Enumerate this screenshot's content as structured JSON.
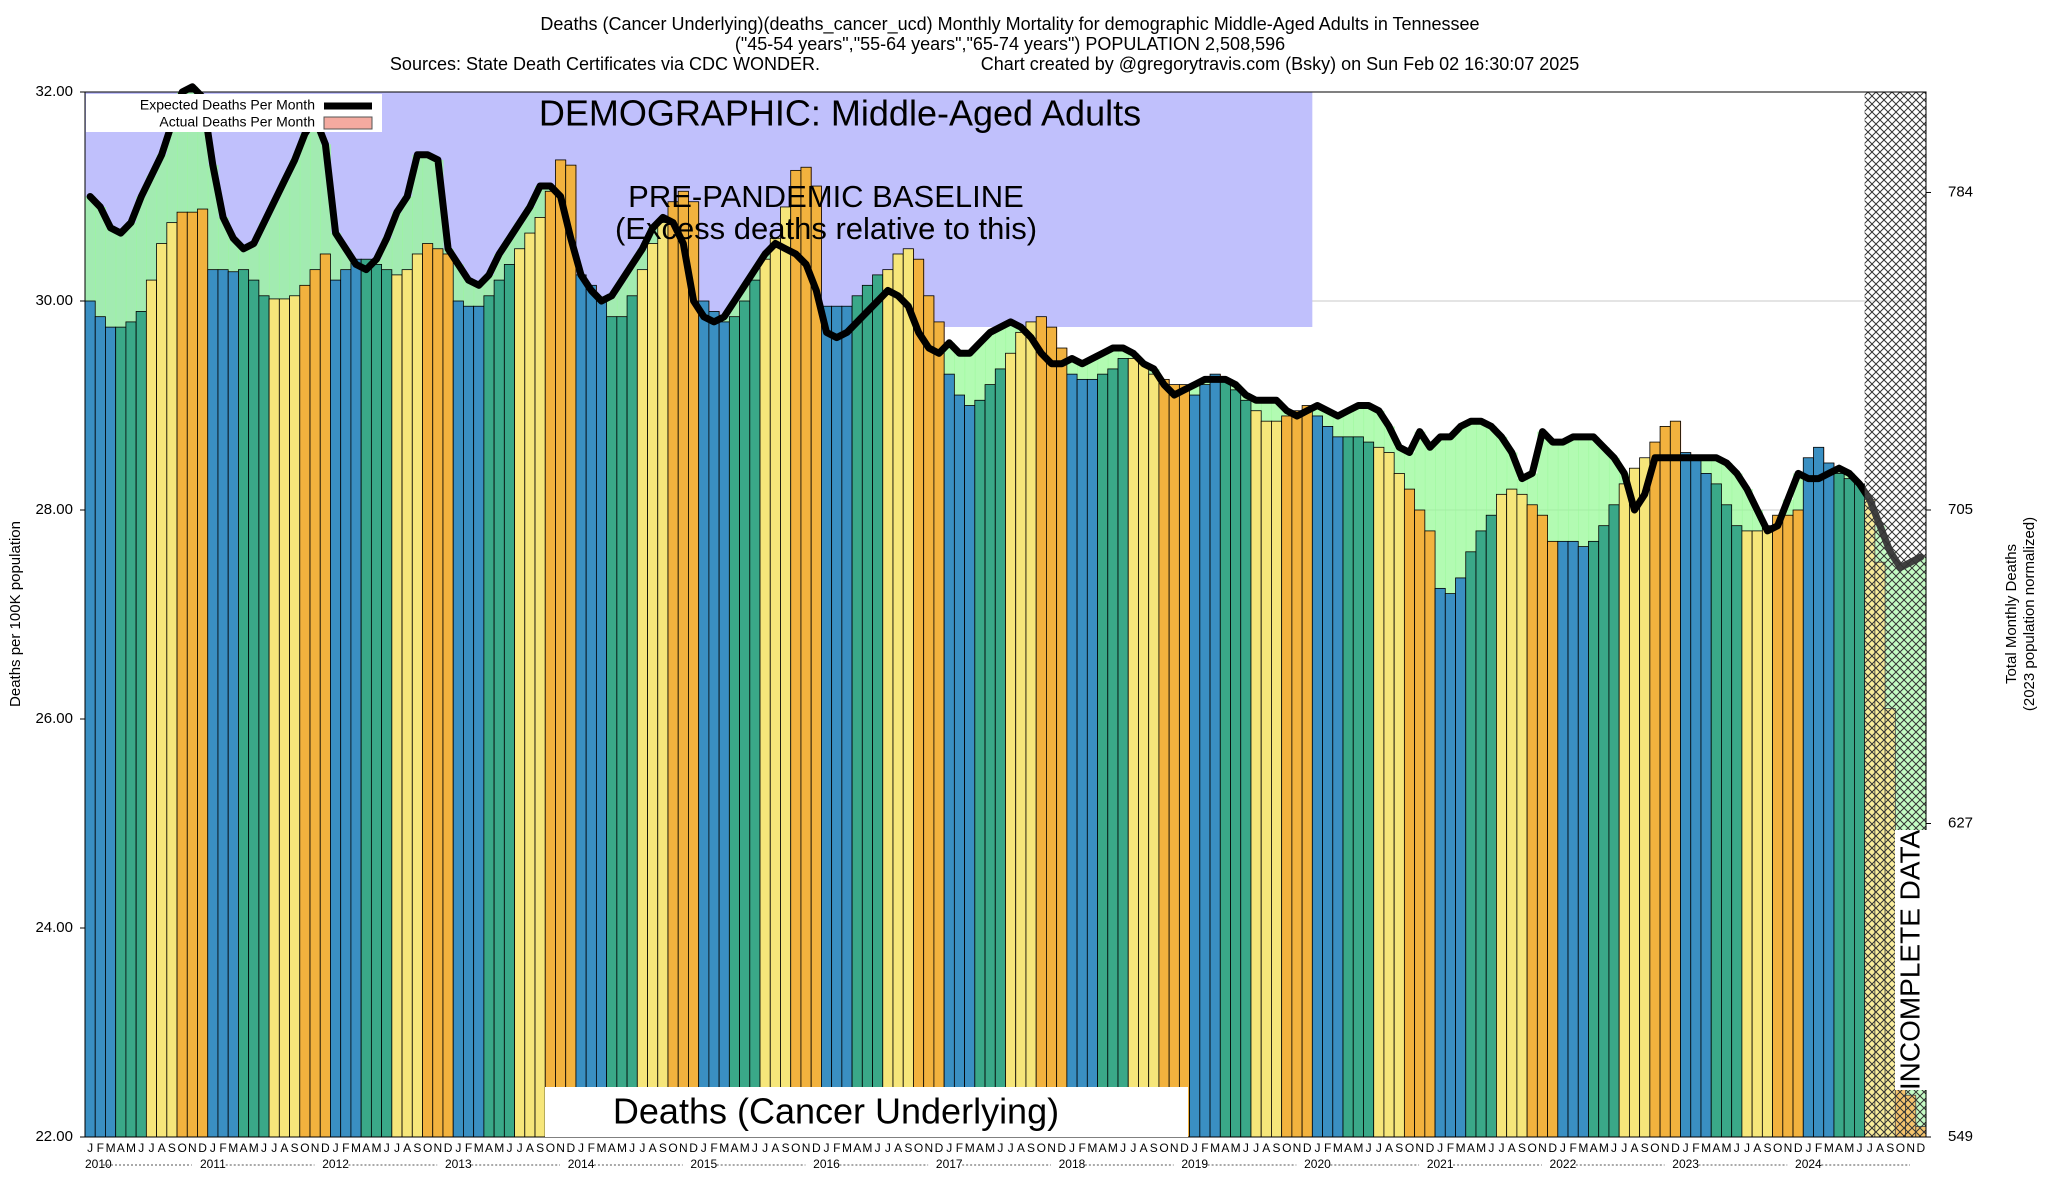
{
  "chart_data": {
    "type": "bar",
    "title": "Deaths (Cancer Underlying)(deaths_cancer_ucd) Monthly Mortality for demographic Middle-Aged Adults in Tennessee",
    "subtitle": "(\"45-54 years\",\"55-64 years\",\"65-74 years\") POPULATION 2,508,596",
    "source": "Sources: State Death Certificates via CDC WONDER.",
    "credit": "Chart created by @gregorytravis.com (Bsky) on Sun Feb 02 16:30:07 2025",
    "ylabel": "Deaths per 100K population",
    "y2label": "Total Monthly Deaths",
    "y2label_note": "(2023 population normalized)",
    "annotations": [
      "DEMOGRAPHIC: Middle-Aged Adults",
      "PRE-PANDEMIC BASELINE",
      "(Excess deaths relative to this)",
      "Deaths (Cancer Underlying)",
      "INCOMPLETE DATA"
    ],
    "categories": [
      "J",
      "F",
      "M",
      "A",
      "M",
      "J",
      "J",
      "A",
      "S",
      "O",
      "N",
      "D",
      "J",
      "F",
      "M",
      "A",
      "M",
      "J",
      "J",
      "A",
      "S",
      "O",
      "N",
      "D",
      "J",
      "F",
      "M",
      "A",
      "M",
      "J",
      "J",
      "A",
      "S",
      "O",
      "N",
      "D",
      "J",
      "F",
      "M",
      "A",
      "M",
      "J",
      "J",
      "A",
      "S",
      "O",
      "N",
      "D",
      "J",
      "F",
      "M",
      "A",
      "M",
      "J",
      "J",
      "A",
      "S",
      "O",
      "N",
      "D",
      "J",
      "F",
      "M",
      "A",
      "M",
      "J",
      "J",
      "A",
      "S",
      "O",
      "N",
      "D",
      "J",
      "F",
      "M",
      "A",
      "M",
      "J",
      "J",
      "A",
      "S",
      "O",
      "N",
      "D",
      "J",
      "F",
      "M",
      "A",
      "M",
      "J",
      "J",
      "A",
      "S",
      "O",
      "N",
      "D",
      "J",
      "F",
      "M",
      "A",
      "M",
      "J",
      "J",
      "A",
      "S",
      "O",
      "N",
      "D",
      "J",
      "F",
      "M",
      "A",
      "M",
      "J",
      "J",
      "A",
      "S",
      "O",
      "N",
      "D",
      "J",
      "F",
      "M",
      "A",
      "M",
      "J",
      "J",
      "A",
      "S",
      "O",
      "N",
      "D",
      "J",
      "F",
      "M",
      "A",
      "M",
      "J",
      "J",
      "A",
      "S",
      "O",
      "N",
      "D",
      "J",
      "F",
      "M",
      "A",
      "M",
      "J",
      "J",
      "A",
      "S",
      "O",
      "N",
      "D",
      "J",
      "F",
      "M",
      "A",
      "M",
      "J",
      "J",
      "A",
      "S",
      "O",
      "N",
      "D",
      "J",
      "F",
      "M",
      "A",
      "M",
      "J",
      "J",
      "A",
      "S",
      "O",
      "N",
      "D"
    ],
    "years": [
      "2010",
      "2011",
      "2012",
      "2013",
      "2014",
      "2015",
      "2016",
      "2017",
      "2018",
      "2019",
      "2020",
      "2021",
      "2022",
      "2023",
      "2024"
    ],
    "season_colors": [
      "#3a8fc2",
      "#3aa888",
      "#f6e67a",
      "#f2b23e"
    ],
    "excess_color": "#f07430",
    "deficit_color": "#98fa98",
    "series": [
      {
        "name": "Actual Deaths Per Month",
        "color": "#f4aaa0",
        "values": [
          30.0,
          29.85,
          29.75,
          29.75,
          29.8,
          29.9,
          30.2,
          30.55,
          30.75,
          30.85,
          30.85,
          30.88,
          30.3,
          30.3,
          30.28,
          30.3,
          30.2,
          30.05,
          30.02,
          30.02,
          30.05,
          30.15,
          30.3,
          30.45,
          30.2,
          30.3,
          30.4,
          30.4,
          30.35,
          30.3,
          30.25,
          30.3,
          30.45,
          30.55,
          30.5,
          30.45,
          30.0,
          29.95,
          29.95,
          30.05,
          30.2,
          30.35,
          30.5,
          30.65,
          30.8,
          31.05,
          31.35,
          31.3,
          30.25,
          30.15,
          30.0,
          29.85,
          29.85,
          30.05,
          30.3,
          30.55,
          30.75,
          30.95,
          31.05,
          30.95,
          30.0,
          29.9,
          29.8,
          29.85,
          30.0,
          30.2,
          30.4,
          30.6,
          30.9,
          31.25,
          31.28,
          31.1,
          29.95,
          29.95,
          29.95,
          30.05,
          30.15,
          30.25,
          30.3,
          30.45,
          30.5,
          30.4,
          30.05,
          29.8,
          29.3,
          29.1,
          29.0,
          29.05,
          29.2,
          29.35,
          29.5,
          29.7,
          29.8,
          29.85,
          29.75,
          29.55,
          29.3,
          29.25,
          29.25,
          29.3,
          29.35,
          29.45,
          29.45,
          29.4,
          29.3,
          29.25,
          29.2,
          29.2,
          29.1,
          29.2,
          29.3,
          29.25,
          29.15,
          29.05,
          28.95,
          28.85,
          28.85,
          28.9,
          28.95,
          29.0,
          28.9,
          28.8,
          28.7,
          28.7,
          28.7,
          28.65,
          28.6,
          28.55,
          28.35,
          28.2,
          28.0,
          27.8,
          27.25,
          27.2,
          27.35,
          27.6,
          27.8,
          27.95,
          28.15,
          28.2,
          28.15,
          28.05,
          27.95,
          27.7,
          27.7,
          27.7,
          27.65,
          27.7,
          27.85,
          28.05,
          28.25,
          28.4,
          28.5,
          28.65,
          28.8,
          28.85,
          28.55,
          28.5,
          28.35,
          28.25,
          28.05,
          27.85,
          27.8,
          27.8,
          27.85,
          27.95,
          27.95,
          28.0,
          28.5,
          28.6,
          28.45,
          28.35,
          28.3,
          28.25,
          28.1,
          27.5,
          26.1,
          22.5,
          22.4,
          22.1
        ]
      },
      {
        "name": "Expected Deaths Per Month",
        "color": "#000000",
        "values": [
          31.0,
          30.9,
          30.7,
          30.65,
          30.75,
          31.0,
          31.2,
          31.4,
          31.7,
          32.0,
          32.05,
          31.95,
          31.3,
          30.8,
          30.6,
          30.5,
          30.55,
          30.75,
          30.95,
          31.15,
          31.35,
          31.6,
          31.75,
          31.5,
          30.65,
          30.5,
          30.35,
          30.3,
          30.4,
          30.6,
          30.85,
          31.0,
          31.4,
          31.4,
          31.35,
          30.5,
          30.35,
          30.2,
          30.15,
          30.25,
          30.45,
          30.6,
          30.75,
          30.9,
          31.1,
          31.1,
          31.0,
          30.6,
          30.25,
          30.1,
          30.0,
          30.05,
          30.2,
          30.35,
          30.5,
          30.7,
          30.8,
          30.75,
          30.55,
          30.0,
          29.85,
          29.8,
          29.85,
          30.0,
          30.15,
          30.3,
          30.45,
          30.55,
          30.5,
          30.45,
          30.35,
          30.1,
          29.7,
          29.65,
          29.7,
          29.8,
          29.9,
          30.0,
          30.1,
          30.05,
          29.95,
          29.7,
          29.55,
          29.5,
          29.6,
          29.5,
          29.5,
          29.6,
          29.7,
          29.75,
          29.8,
          29.75,
          29.65,
          29.5,
          29.4,
          29.4,
          29.45,
          29.4,
          29.45,
          29.5,
          29.55,
          29.55,
          29.5,
          29.4,
          29.35,
          29.2,
          29.1,
          29.15,
          29.2,
          29.25,
          29.25,
          29.25,
          29.2,
          29.1,
          29.05,
          29.05,
          29.05,
          28.95,
          28.9,
          28.95,
          29.0,
          28.95,
          28.9,
          28.95,
          29.0,
          29.0,
          28.95,
          28.8,
          28.6,
          28.55,
          28.75,
          28.6,
          28.7,
          28.7,
          28.8,
          28.85,
          28.85,
          28.8,
          28.7,
          28.55,
          28.3,
          28.35,
          28.75,
          28.65,
          28.65,
          28.7,
          28.7,
          28.7,
          28.6,
          28.5,
          28.35,
          28.0,
          28.15,
          28.5,
          28.5,
          28.5,
          28.5,
          28.5,
          28.5,
          28.5,
          28.45,
          28.35,
          28.2,
          28.0,
          27.8,
          27.85,
          28.1,
          28.35,
          28.3,
          28.3,
          28.35,
          28.4,
          28.35,
          28.25,
          28.1,
          27.85,
          27.6,
          27.45,
          27.5,
          27.55
        ]
      }
    ],
    "ylim": [
      22,
      32
    ],
    "yticks": [
      {
        "value": 22,
        "label": "22.00"
      },
      {
        "value": 24,
        "label": "24.00"
      },
      {
        "value": 26,
        "label": "26.00"
      },
      {
        "value": 28,
        "label": "28.00"
      },
      {
        "value": 30,
        "label": "30.00"
      },
      {
        "value": 32,
        "label": "32.00"
      }
    ],
    "y2lim": [
      549,
      809
    ],
    "y2ticks": [
      549,
      627,
      705,
      784
    ],
    "grid": true
  }
}
